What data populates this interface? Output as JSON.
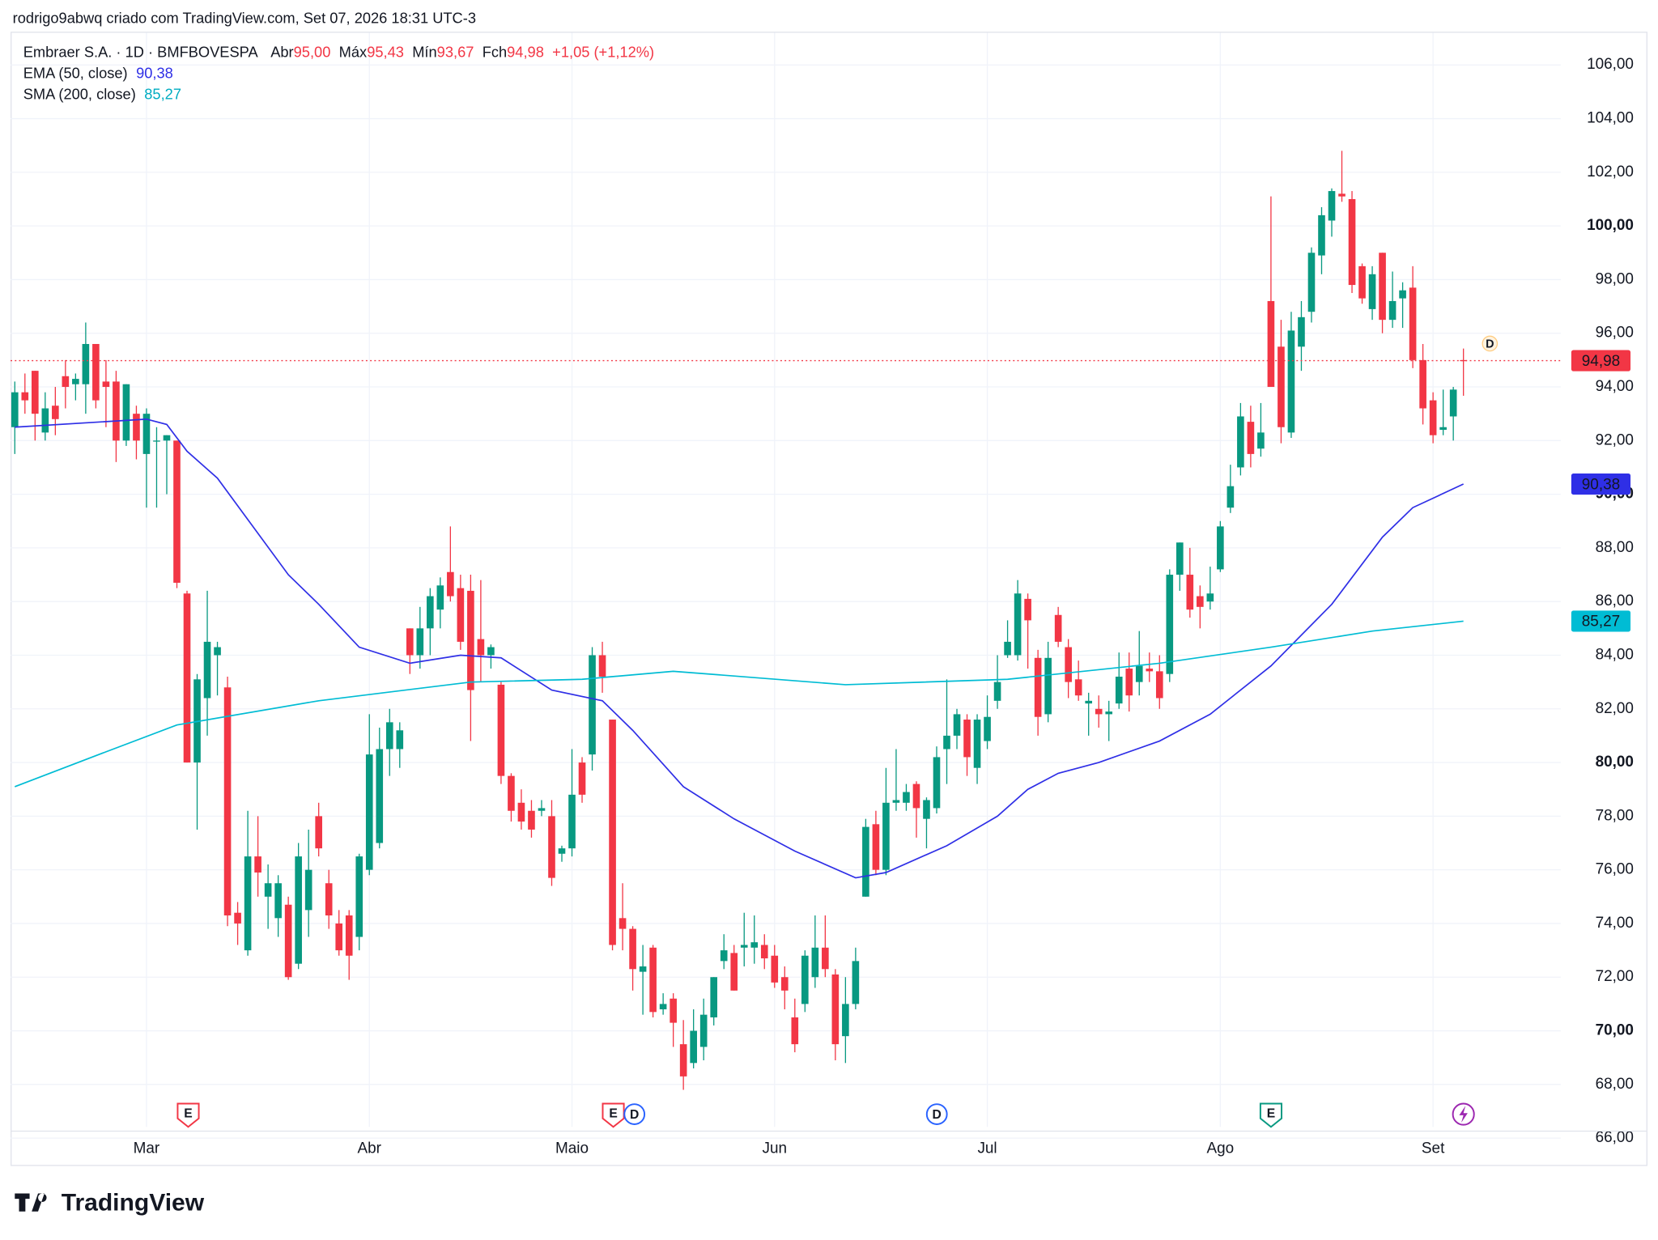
{
  "header": "rodrigo9abwq criado com TradingView.com, Set 07, 2026 18:31 UTC-3",
  "logo": "TradingView",
  "chart_data": {
    "type": "candlestick",
    "legend": {
      "name": "Embraer S.A. · 1D · BMFBOVESPA",
      "items": [
        {
          "label": "Abr",
          "value": "95,00"
        },
        {
          "label": "Máx",
          "value": "95,43"
        },
        {
          "label": "Mín",
          "value": "93,67"
        },
        {
          "label": "Fch",
          "value": "94,98"
        }
      ],
      "change": "+1,05 (+1,12%)"
    },
    "up_color": "#089981",
    "down_color": "#f23645",
    "categories": [
      null,
      null,
      null,
      null,
      null,
      null,
      null,
      null,
      null,
      null,
      null,
      null,
      null,
      "Mar",
      null,
      null,
      null,
      null,
      null,
      null,
      null,
      null,
      null,
      null,
      null,
      null,
      null,
      null,
      null,
      null,
      null,
      null,
      null,
      null,
      null,
      "Abr",
      null,
      null,
      null,
      null,
      null,
      null,
      null,
      null,
      null,
      null,
      null,
      null,
      null,
      null,
      null,
      null,
      null,
      null,
      null,
      "Maio",
      null,
      null,
      null,
      null,
      null,
      null,
      null,
      null,
      null,
      null,
      null,
      null,
      null,
      null,
      null,
      null,
      null,
      null,
      null,
      "Jun",
      null,
      null,
      null,
      null,
      null,
      null,
      null,
      null,
      null,
      null,
      null,
      null,
      null,
      null,
      null,
      null,
      null,
      null,
      null,
      null,
      "Jul",
      null,
      null,
      null,
      null,
      null,
      null,
      null,
      null,
      null,
      null,
      null,
      null,
      null,
      null,
      null,
      null,
      null,
      null,
      null,
      null,
      null,
      null,
      "Ago",
      null,
      null,
      null,
      null,
      null,
      null,
      null,
      null,
      null,
      null,
      null,
      null,
      null,
      null,
      null,
      null,
      null,
      null,
      null,
      null,
      "Set",
      null,
      null,
      null
    ],
    "ohlc": [
      [
        92.5,
        94.2,
        91.5,
        93.8
      ],
      [
        93.8,
        94.5,
        93.0,
        93.5
      ],
      [
        94.6,
        94.6,
        92.0,
        93.0
      ],
      [
        92.3,
        93.8,
        92.0,
        93.2
      ],
      [
        93.3,
        94.0,
        92.2,
        92.8
      ],
      [
        94.4,
        95.0,
        93.2,
        94.0
      ],
      [
        94.1,
        94.5,
        93.5,
        94.3
      ],
      [
        94.1,
        96.4,
        93.0,
        95.6
      ],
      [
        95.6,
        95.6,
        93.2,
        93.5
      ],
      [
        94.2,
        95.0,
        92.5,
        94.0
      ],
      [
        94.2,
        94.6,
        91.2,
        92.0
      ],
      [
        92.0,
        94.1,
        91.8,
        94.1
      ],
      [
        93.0,
        93.3,
        91.3,
        92.0
      ],
      [
        91.5,
        93.2,
        89.5,
        93.0
      ],
      [
        92.0,
        92.5,
        89.5,
        92.0
      ],
      [
        92.0,
        92.2,
        90.0,
        92.2
      ],
      [
        92.0,
        92.0,
        86.5,
        86.7
      ],
      [
        86.3,
        86.4,
        80.0,
        80.0
      ],
      [
        80.0,
        83.3,
        77.5,
        83.1
      ],
      [
        82.4,
        86.4,
        81.0,
        84.5
      ],
      [
        84.0,
        84.5,
        82.5,
        84.3
      ],
      [
        82.8,
        83.2,
        73.9,
        74.3
      ],
      [
        74.4,
        74.8,
        73.2,
        74.0
      ],
      [
        73.0,
        78.2,
        72.8,
        76.5
      ],
      [
        76.5,
        78.0,
        75.0,
        75.9
      ],
      [
        75.0,
        76.2,
        73.8,
        75.5
      ],
      [
        74.2,
        75.8,
        73.5,
        75.5
      ],
      [
        74.7,
        75.0,
        71.9,
        72.0
      ],
      [
        72.5,
        77.0,
        72.3,
        76.5
      ],
      [
        74.5,
        77.5,
        73.5,
        76.0
      ],
      [
        78.0,
        78.5,
        76.5,
        76.8
      ],
      [
        75.5,
        76.0,
        73.8,
        74.3
      ],
      [
        74.0,
        74.5,
        72.8,
        73.0
      ],
      [
        74.3,
        74.5,
        71.9,
        72.8
      ],
      [
        73.5,
        76.6,
        73.0,
        76.5
      ],
      [
        76.0,
        81.8,
        75.8,
        80.3
      ],
      [
        77.0,
        81.3,
        76.8,
        80.5
      ],
      [
        80.5,
        82.0,
        79.5,
        81.5
      ],
      [
        80.5,
        81.5,
        79.8,
        81.2
      ],
      [
        85.0,
        85.0,
        83.3,
        84.0
      ],
      [
        84.0,
        85.8,
        83.5,
        85.0
      ],
      [
        85.0,
        86.5,
        84.0,
        86.2
      ],
      [
        85.7,
        86.9,
        85.0,
        86.6
      ],
      [
        87.1,
        88.8,
        86.0,
        86.2
      ],
      [
        86.5,
        87.0,
        84.2,
        84.5
      ],
      [
        86.4,
        87.0,
        80.8,
        82.7
      ],
      [
        84.6,
        86.8,
        83.0,
        84.0
      ],
      [
        84.0,
        84.4,
        83.5,
        84.3
      ],
      [
        82.9,
        83.0,
        79.2,
        79.5
      ],
      [
        79.5,
        79.6,
        77.8,
        78.2
      ],
      [
        78.5,
        79.0,
        77.5,
        77.8
      ],
      [
        78.2,
        78.6,
        77.2,
        77.5
      ],
      [
        78.2,
        78.6,
        78.0,
        78.3
      ],
      [
        78.0,
        78.6,
        75.4,
        75.7
      ],
      [
        76.6,
        76.9,
        76.3,
        76.8
      ],
      [
        76.8,
        80.5,
        76.5,
        78.8
      ],
      [
        80.0,
        80.2,
        78.5,
        78.8
      ],
      [
        80.3,
        84.3,
        79.7,
        84.0
      ],
      [
        84.0,
        84.5,
        82.6,
        83.2
      ],
      [
        81.6,
        81.6,
        73.0,
        73.2
      ],
      [
        74.2,
        75.5,
        73.0,
        73.8
      ],
      [
        73.8,
        73.9,
        71.5,
        72.3
      ],
      [
        72.2,
        73.2,
        70.6,
        72.4
      ],
      [
        73.1,
        73.2,
        70.5,
        70.7
      ],
      [
        70.8,
        71.4,
        70.6,
        71.0
      ],
      [
        71.2,
        71.4,
        69.4,
        70.3
      ],
      [
        69.5,
        70.4,
        67.8,
        68.3
      ],
      [
        68.8,
        70.8,
        68.6,
        70.0
      ],
      [
        69.4,
        71.2,
        68.9,
        70.6
      ],
      [
        70.5,
        72.0,
        70.2,
        72.0
      ],
      [
        72.6,
        73.6,
        72.3,
        73.0
      ],
      [
        72.9,
        73.2,
        71.5,
        71.5
      ],
      [
        73.1,
        74.4,
        72.4,
        73.2
      ],
      [
        73.1,
        74.3,
        72.5,
        73.3
      ],
      [
        73.2,
        73.6,
        72.3,
        72.7
      ],
      [
        72.8,
        73.2,
        71.6,
        71.8
      ],
      [
        72.0,
        72.4,
        70.8,
        71.5
      ],
      [
        70.5,
        71.2,
        69.2,
        69.5
      ],
      [
        71.0,
        73.0,
        70.7,
        72.8
      ],
      [
        72.0,
        74.3,
        71.6,
        73.1
      ],
      [
        73.1,
        74.3,
        72.0,
        72.3
      ],
      [
        72.1,
        72.3,
        68.9,
        69.5
      ],
      [
        69.8,
        72.0,
        68.8,
        71.0
      ],
      [
        71.0,
        73.1,
        70.8,
        72.6
      ],
      [
        75.0,
        77.9,
        75.0,
        77.6
      ],
      [
        77.7,
        78.2,
        75.8,
        76.0
      ],
      [
        76.0,
        79.8,
        75.8,
        78.5
      ],
      [
        78.5,
        80.5,
        78.2,
        78.6
      ],
      [
        78.5,
        79.2,
        78.2,
        78.9
      ],
      [
        79.2,
        79.3,
        77.2,
        78.3
      ],
      [
        77.9,
        78.7,
        76.8,
        78.6
      ],
      [
        78.3,
        80.6,
        78.1,
        80.2
      ],
      [
        80.5,
        83.1,
        79.2,
        81.0
      ],
      [
        81.0,
        82.0,
        80.5,
        81.8
      ],
      [
        81.6,
        81.8,
        79.5,
        80.2
      ],
      [
        79.8,
        81.8,
        79.2,
        81.6
      ],
      [
        80.8,
        82.5,
        80.5,
        81.7
      ],
      [
        82.3,
        84.0,
        82.0,
        83.0
      ],
      [
        84.0,
        85.3,
        83.9,
        84.5
      ],
      [
        84.0,
        86.8,
        83.8,
        86.3
      ],
      [
        86.1,
        86.3,
        83.5,
        85.3
      ],
      [
        83.9,
        84.2,
        81.0,
        81.7
      ],
      [
        81.8,
        84.5,
        81.5,
        83.9
      ],
      [
        85.5,
        85.8,
        84.3,
        84.5
      ],
      [
        84.3,
        84.6,
        82.4,
        83.0
      ],
      [
        83.1,
        83.8,
        82.3,
        82.5
      ],
      [
        82.2,
        82.6,
        81.0,
        82.3
      ],
      [
        82.0,
        82.5,
        81.3,
        81.8
      ],
      [
        81.8,
        82.3,
        80.8,
        81.9
      ],
      [
        82.2,
        84.1,
        82.0,
        83.2
      ],
      [
        83.5,
        84.1,
        81.9,
        82.5
      ],
      [
        83.0,
        84.9,
        82.5,
        83.6
      ],
      [
        83.5,
        84.1,
        83.0,
        83.4
      ],
      [
        83.4,
        84.0,
        82.0,
        82.4
      ],
      [
        83.3,
        87.2,
        83.0,
        87.0
      ],
      [
        87.0,
        88.2,
        86.4,
        88.2
      ],
      [
        87.0,
        88.0,
        85.4,
        85.7
      ],
      [
        86.2,
        86.6,
        85.0,
        85.8
      ],
      [
        86.0,
        87.3,
        85.7,
        86.3
      ],
      [
        87.2,
        89.0,
        87.1,
        88.8
      ],
      [
        89.5,
        91.1,
        89.3,
        90.3
      ],
      [
        91.0,
        93.4,
        90.7,
        92.9
      ],
      [
        92.7,
        93.3,
        91.0,
        91.5
      ],
      [
        91.7,
        93.4,
        91.4,
        92.3
      ],
      [
        97.2,
        101.1,
        94.0,
        94.0
      ],
      [
        95.5,
        96.5,
        91.9,
        92.5
      ],
      [
        92.3,
        96.8,
        92.1,
        96.1
      ],
      [
        95.5,
        97.2,
        94.6,
        96.6
      ],
      [
        96.8,
        99.2,
        96.4,
        99.0
      ],
      [
        98.9,
        100.7,
        98.2,
        100.4
      ],
      [
        100.2,
        101.4,
        99.6,
        101.3
      ],
      [
        101.2,
        102.8,
        100.9,
        101.1
      ],
      [
        101.0,
        101.3,
        97.5,
        97.8
      ],
      [
        98.5,
        98.6,
        97.1,
        97.3
      ],
      [
        96.9,
        98.5,
        96.5,
        98.2
      ],
      [
        99.0,
        99.0,
        96.0,
        96.5
      ],
      [
        96.5,
        98.3,
        96.2,
        97.2
      ],
      [
        97.3,
        97.9,
        96.2,
        97.6
      ],
      [
        97.7,
        98.5,
        94.7,
        95.0
      ],
      [
        95.0,
        95.6,
        92.6,
        93.2
      ],
      [
        93.5,
        93.8,
        91.9,
        92.2
      ],
      [
        92.4,
        93.9,
        92.2,
        92.5
      ],
      [
        92.9,
        94.0,
        92.0,
        93.9
      ],
      [
        95.0,
        95.43,
        93.67,
        94.98
      ]
    ],
    "last_price": 94.98,
    "last_price_label": "94,98",
    "series": [
      {
        "name": "EMA (50, close)",
        "color": "#2f2fe6",
        "value_label": "90,38",
        "x": [
          0,
          13,
          15,
          17,
          20,
          27,
          30,
          34,
          39,
          44,
          48,
          53,
          58,
          61,
          66,
          71,
          77,
          83,
          86,
          92,
          97,
          100,
          103,
          107,
          113,
          118,
          124,
          130,
          135,
          138,
          143
        ],
        "values": [
          92.5,
          92.8,
          92.6,
          91.6,
          90.6,
          87.0,
          85.9,
          84.3,
          83.7,
          84.0,
          83.9,
          82.7,
          82.3,
          81.2,
          79.1,
          77.9,
          76.7,
          75.7,
          75.9,
          76.9,
          78.0,
          79.0,
          79.6,
          80.0,
          80.8,
          81.8,
          83.6,
          85.9,
          88.4,
          89.5,
          90.38
        ]
      },
      {
        "name": "SMA (200, close)",
        "color": "#00bcd4",
        "value_label": "85,27",
        "x": [
          0,
          9,
          16,
          30,
          45,
          56,
          65,
          82,
          98,
          113,
          124,
          134,
          143
        ],
        "values": [
          79.1,
          80.4,
          81.4,
          82.3,
          83.0,
          83.1,
          83.4,
          82.9,
          83.1,
          83.7,
          84.3,
          84.9,
          85.27
        ]
      }
    ],
    "ylim": [
      65.0,
      107.2
    ],
    "yticks": [
      {
        "value": 66,
        "label": "66,00"
      },
      {
        "value": 68,
        "label": "68,00"
      },
      {
        "value": 70,
        "label": "70,00"
      },
      {
        "value": 72,
        "label": "72,00"
      },
      {
        "value": 74,
        "label": "74,00"
      },
      {
        "value": 76,
        "label": "76,00"
      },
      {
        "value": 78,
        "label": "78,00"
      },
      {
        "value": 80,
        "label": "80,00"
      },
      {
        "value": 82,
        "label": "82,00"
      },
      {
        "value": 84,
        "label": "84,00"
      },
      {
        "value": 86,
        "label": "86,00"
      },
      {
        "value": 88,
        "label": "88,00"
      },
      {
        "value": 90,
        "label": "90,00"
      },
      {
        "value": 92,
        "label": "92,00"
      },
      {
        "value": 94,
        "label": "94,00"
      },
      {
        "value": 96,
        "label": "96,00"
      },
      {
        "value": 98,
        "label": "98,00"
      },
      {
        "value": 100,
        "label": "100,00"
      },
      {
        "value": 102,
        "label": "102,00"
      },
      {
        "value": 104,
        "label": "104,00"
      },
      {
        "value": 106,
        "label": "106,00"
      }
    ],
    "grid": true,
    "events": [
      "E",
      "E",
      "D",
      "D",
      "E",
      "D"
    ]
  }
}
